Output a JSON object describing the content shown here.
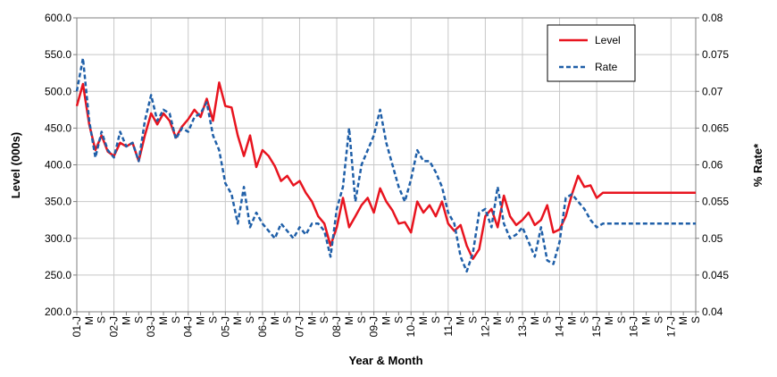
{
  "chart_data": {
    "type": "line",
    "xlabel": "Year & Month",
    "ylabel_left": "Level (000s)",
    "ylabel_right": "% Rate*",
    "ylim_left": [
      200,
      600
    ],
    "ylim_right": [
      0.04,
      0.08
    ],
    "yticks_left": [
      "200.0",
      "250.0",
      "300.0",
      "350.0",
      "400.0",
      "450.0",
      "500.0",
      "550.0",
      "600.0"
    ],
    "yticks_right": [
      "0.04",
      "0.045",
      "0.05",
      "0.055",
      "0.06",
      "0.065",
      "0.07",
      "0.075",
      "0.08"
    ],
    "x_tick_labels": [
      "01-J",
      "M",
      "S",
      "02-J",
      "M",
      "S",
      "03-J",
      "M",
      "S",
      "04-J",
      "M",
      "S",
      "05-J",
      "M",
      "S",
      "06-J",
      "M",
      "S",
      "07-J",
      "M",
      "S",
      "08-J",
      "M",
      "S",
      "09-J",
      "M",
      "S",
      "10-J",
      "M",
      "S",
      "11-J",
      "M",
      "S",
      "12-J",
      "M",
      "S",
      "13-J",
      "M",
      "S",
      "14-J",
      "M",
      "S",
      "15-J",
      "M",
      "S",
      "16-J",
      "M",
      "S",
      "17-J",
      "M",
      "S"
    ],
    "grid": true,
    "legend_position": "top-right",
    "colors": {
      "level": "#e8141f",
      "rate": "#1f5fa8",
      "grid": "#c8c8c8"
    },
    "series": [
      {
        "name": "Level",
        "axis": "left",
        "style": "solid",
        "x": [
          0,
          2,
          4,
          6,
          8,
          10,
          12,
          14,
          16,
          18,
          20,
          22,
          24,
          26,
          28,
          30,
          32,
          34,
          36,
          38,
          40,
          42,
          44,
          46,
          48,
          50,
          52,
          54,
          56,
          58,
          60,
          62,
          64,
          66,
          68,
          70,
          72,
          74,
          76,
          78,
          80,
          82,
          84,
          86,
          88,
          90,
          92,
          94,
          96,
          98,
          100,
          102,
          104,
          106,
          108,
          110,
          112,
          114,
          116,
          118,
          120,
          122,
          124,
          126,
          128,
          130,
          132,
          134,
          136,
          138,
          140,
          142,
          144,
          146,
          148,
          150,
          152,
          154,
          156,
          158,
          160,
          162,
          164,
          166,
          168,
          170,
          172,
          174,
          176,
          178,
          180,
          182,
          184,
          186,
          188,
          190,
          192,
          194,
          196,
          198,
          200
        ],
        "values": [
          480,
          510,
          455,
          420,
          440,
          418,
          412,
          430,
          425,
          430,
          405,
          440,
          470,
          455,
          470,
          460,
          437,
          452,
          462,
          475,
          465,
          490,
          460,
          512,
          480,
          478,
          440,
          412,
          440,
          397,
          420,
          412,
          398,
          378,
          385,
          372,
          378,
          362,
          350,
          330,
          320,
          290,
          315,
          355,
          315,
          330,
          345,
          355,
          335,
          368,
          350,
          338,
          320,
          322,
          308,
          350,
          335,
          345,
          330,
          350,
          320,
          310,
          318,
          290,
          272,
          285,
          330,
          340,
          315,
          358,
          330,
          318,
          325,
          335,
          318,
          325,
          345,
          308,
          312,
          330,
          360,
          385,
          370,
          372,
          355,
          362,
          362,
          362,
          362,
          362,
          362,
          362,
          362,
          362,
          362,
          362,
          362,
          362,
          362,
          362,
          362
        ]
      },
      {
        "name": "Rate",
        "axis": "right",
        "style": "dashed",
        "x": [
          0,
          2,
          4,
          6,
          8,
          10,
          12,
          14,
          16,
          18,
          20,
          22,
          24,
          26,
          28,
          30,
          32,
          34,
          36,
          38,
          40,
          42,
          44,
          46,
          48,
          50,
          52,
          54,
          56,
          58,
          60,
          62,
          64,
          66,
          68,
          70,
          72,
          74,
          76,
          78,
          80,
          82,
          84,
          86,
          88,
          90,
          92,
          94,
          96,
          98,
          100,
          102,
          104,
          106,
          108,
          110,
          112,
          114,
          116,
          118,
          120,
          122,
          124,
          126,
          128,
          130,
          132,
          134,
          136,
          138,
          140,
          142,
          144,
          146,
          148,
          150,
          152,
          154,
          156,
          158,
          160,
          162,
          164,
          166,
          168,
          170,
          172,
          174,
          176,
          178,
          180,
          182,
          184,
          186,
          188,
          190,
          192,
          194,
          196,
          198,
          200
        ],
        "values": [
          0.07,
          0.0745,
          0.066,
          0.061,
          0.0645,
          0.062,
          0.061,
          0.0645,
          0.0625,
          0.063,
          0.0605,
          0.066,
          0.0695,
          0.066,
          0.0675,
          0.067,
          0.0635,
          0.065,
          0.0645,
          0.0665,
          0.067,
          0.0685,
          0.064,
          0.062,
          0.0575,
          0.056,
          0.052,
          0.057,
          0.0515,
          0.0535,
          0.052,
          0.051,
          0.05,
          0.052,
          0.051,
          0.05,
          0.0515,
          0.0505,
          0.052,
          0.052,
          0.051,
          0.0475,
          0.054,
          0.057,
          0.065,
          0.055,
          0.06,
          0.062,
          0.064,
          0.0675,
          0.063,
          0.06,
          0.057,
          0.055,
          0.058,
          0.062,
          0.0605,
          0.0605,
          0.059,
          0.057,
          0.0535,
          0.052,
          0.0475,
          0.0455,
          0.048,
          0.0535,
          0.054,
          0.0515,
          0.057,
          0.052,
          0.05,
          0.0505,
          0.0515,
          0.0495,
          0.0475,
          0.0515,
          0.047,
          0.0465,
          0.0495,
          0.0555,
          0.056,
          0.055,
          0.054,
          0.0525,
          0.0515,
          0.052,
          0.052,
          0.052,
          0.052,
          0.052,
          0.052,
          0.052,
          0.052,
          0.052,
          0.052,
          0.052,
          0.052,
          0.052,
          0.052,
          0.052,
          0.052
        ]
      }
    ]
  }
}
